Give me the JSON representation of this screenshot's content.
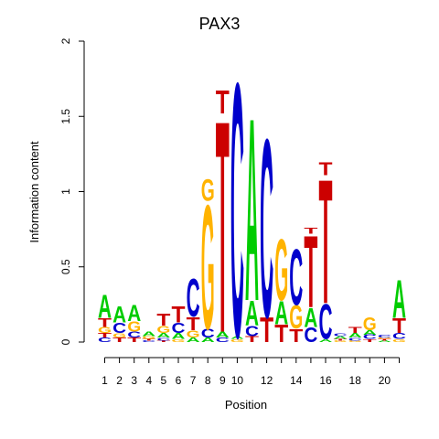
{
  "chart_data": {
    "type": "sequence-logo",
    "title": "PAX3",
    "xlabel": "Position",
    "ylabel": "Information content",
    "ylim": [
      0,
      2
    ],
    "y_ticks": [
      "0",
      "0.5",
      "1",
      "1.5",
      "2"
    ],
    "x_tick_labels": [
      "1",
      "2",
      "3",
      "4",
      "5",
      "6",
      "7",
      "8",
      "9",
      "10",
      "12",
      "14",
      "16",
      "18",
      "20"
    ],
    "x_tick_positions": [
      1,
      2,
      3,
      4,
      5,
      6,
      7,
      8,
      9,
      10,
      12,
      14,
      16,
      18,
      20
    ],
    "num_positions": 21,
    "colors": {
      "A": "#00cc00",
      "C": "#0000cc",
      "G": "#ffb300",
      "T": "#cc0000"
    },
    "positions": [
      [
        [
          "C",
          0.03
        ],
        [
          "T",
          0.03
        ],
        [
          "G",
          0.04
        ],
        [
          "T",
          0.06
        ],
        [
          "A",
          0.16
        ]
      ],
      [
        [
          "T",
          0.03
        ],
        [
          "G",
          0.03
        ],
        [
          "C",
          0.07
        ],
        [
          "A",
          0.11
        ]
      ],
      [
        [
          "T",
          0.03
        ],
        [
          "C",
          0.04
        ],
        [
          "G",
          0.07
        ],
        [
          "A",
          0.11
        ]
      ],
      [
        [
          "C",
          0.01
        ],
        [
          "T",
          0.01
        ],
        [
          "G",
          0.02
        ],
        [
          "A",
          0.03
        ]
      ],
      [
        [
          "T",
          0.01
        ],
        [
          "C",
          0.02
        ],
        [
          "A",
          0.03
        ],
        [
          "G",
          0.05
        ],
        [
          "T",
          0.08
        ]
      ],
      [
        [
          "G",
          0.02
        ],
        [
          "A",
          0.04
        ],
        [
          "C",
          0.07
        ],
        [
          "T",
          0.11
        ]
      ],
      [
        [
          "A",
          0.03
        ],
        [
          "G",
          0.05
        ],
        [
          "T",
          0.09
        ],
        [
          "C",
          0.26
        ]
      ],
      [
        [
          "A",
          0.03
        ],
        [
          "C",
          0.06
        ],
        [
          "G",
          0.85
        ],
        [
          "G",
          0.15
        ]
      ],
      [
        [
          "C",
          0.03
        ],
        [
          "A",
          0.04
        ],
        [
          "T",
          1.45
        ],
        [
          "T",
          0.16
        ]
      ],
      [
        [
          "G",
          0.02
        ],
        [
          "A",
          0.02
        ],
        [
          "C",
          1.74
        ]
      ],
      [
        [
          "T",
          0.04
        ],
        [
          "C",
          0.07
        ],
        [
          "A",
          0.17
        ],
        [
          "A",
          1.25
        ]
      ],
      [
        [
          "T",
          0.17
        ],
        [
          "C",
          1.22
        ]
      ],
      [
        [
          "T",
          0.12
        ],
        [
          "A",
          0.16
        ],
        [
          "G",
          0.42
        ]
      ],
      [
        [
          "T",
          0.09
        ],
        [
          "G",
          0.16
        ],
        [
          "C",
          0.38
        ]
      ],
      [
        [
          "C",
          0.1
        ],
        [
          "A",
          0.13
        ],
        [
          "T",
          0.49
        ],
        [
          "T",
          0.04
        ]
      ],
      [
        [
          "A",
          0.02
        ],
        [
          "C",
          0.24
        ],
        [
          "T",
          0.85
        ],
        [
          "T",
          0.09
        ]
      ],
      [
        [
          "G",
          0.01
        ],
        [
          "T",
          0.01
        ],
        [
          "A",
          0.02
        ],
        [
          "C",
          0.02
        ]
      ],
      [
        [
          "G",
          0.01
        ],
        [
          "C",
          0.02
        ],
        [
          "A",
          0.03
        ],
        [
          "T",
          0.04
        ]
      ],
      [
        [
          "T",
          0.02
        ],
        [
          "C",
          0.03
        ],
        [
          "A",
          0.03
        ],
        [
          "G",
          0.09
        ]
      ],
      [
        [
          "A",
          0.01
        ],
        [
          "T",
          0.01
        ],
        [
          "G",
          0.01
        ],
        [
          "C",
          0.02
        ]
      ],
      [
        [
          "G",
          0.02
        ],
        [
          "C",
          0.04
        ],
        [
          "T",
          0.1
        ],
        [
          "A",
          0.26
        ]
      ]
    ]
  }
}
